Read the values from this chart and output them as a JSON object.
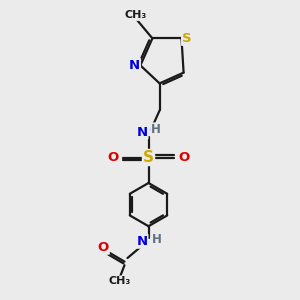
{
  "bg_color": "#ebebeb",
  "bond_color": "#1a1a1a",
  "S_color": "#ccaa00",
  "N_color": "#0000dd",
  "O_color": "#dd0000",
  "H_color": "#607080",
  "C_color": "#1a1a1a",
  "fs": 9,
  "fs_small": 8,
  "lw": 1.6,
  "xlim": [
    2.8,
    8.2
  ],
  "ylim": [
    0.2,
    10.2
  ]
}
